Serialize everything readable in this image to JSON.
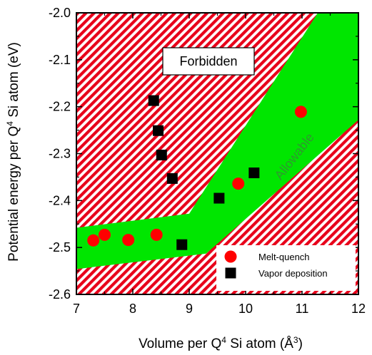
{
  "chart_data": {
    "type": "scatter",
    "xlabel": {
      "main": "Volume per Q",
      "sup": "4",
      "rest": " Si atom (Å",
      "sup2": "3",
      "close": ")"
    },
    "ylabel": {
      "main": "Potential energy per Q",
      "sup": "4",
      "rest": " Si atom (eV)"
    },
    "xlim": [
      7,
      12
    ],
    "ylim": [
      -2.6,
      -2.0
    ],
    "x_ticks": [
      "7",
      "8",
      "9",
      "10",
      "11",
      "12"
    ],
    "y_ticks": [
      "-2.0",
      "-2.1",
      "-2.2",
      "-2.3",
      "-2.4",
      "-2.5",
      "-2.6"
    ],
    "grid": false,
    "legend_position": "bottom-right",
    "series": [
      {
        "name": "Melt-quench",
        "marker": "circle",
        "color": "#ff0000",
        "points": [
          [
            7.3,
            -2.485
          ],
          [
            7.5,
            -2.473
          ],
          [
            7.92,
            -2.484
          ],
          [
            8.42,
            -2.473
          ],
          [
            9.87,
            -2.364
          ],
          [
            10.98,
            -2.211
          ]
        ]
      },
      {
        "name": "Vapor deposition",
        "marker": "square",
        "color": "#000000",
        "points": [
          [
            8.37,
            -2.187
          ],
          [
            8.45,
            -2.251
          ],
          [
            8.51,
            -2.303
          ],
          [
            8.7,
            -2.353
          ],
          [
            8.87,
            -2.494
          ],
          [
            9.53,
            -2.395
          ],
          [
            10.15,
            -2.341
          ]
        ]
      }
    ],
    "regions": [
      {
        "label": "Forbidden",
        "fill": "red-white-diagonal-hatch",
        "colors": [
          "#e8001a",
          "#ffffff"
        ]
      },
      {
        "label": "Allowable",
        "fill": "solid",
        "color": "#00e600",
        "polygon": [
          [
            7.0,
            -2.458
          ],
          [
            9.0,
            -2.428
          ],
          [
            11.28,
            -2.0
          ],
          [
            12.0,
            -2.0
          ],
          [
            12.0,
            -2.228
          ],
          [
            9.3,
            -2.513
          ],
          [
            7.0,
            -2.546
          ]
        ]
      }
    ]
  }
}
